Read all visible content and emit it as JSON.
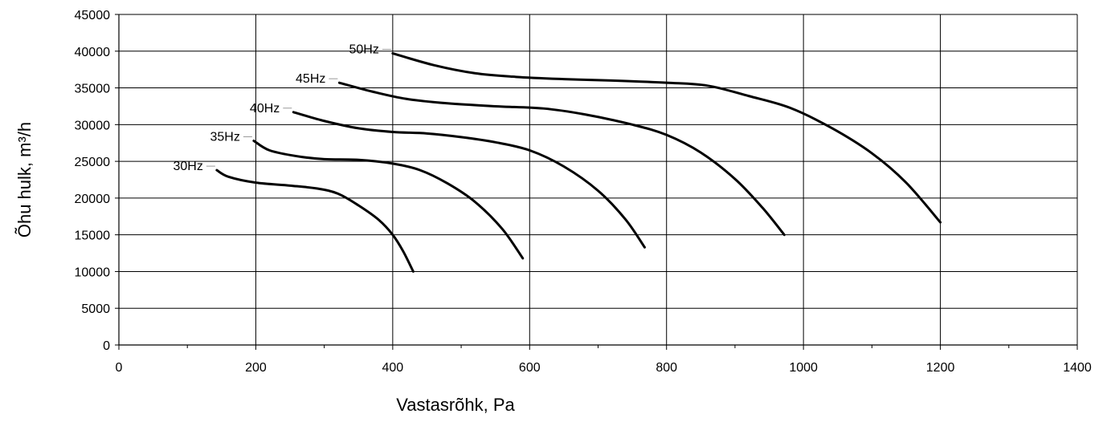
{
  "chart_data": {
    "type": "line",
    "title": "",
    "xlabel": "Vastasrõhk, Pa",
    "ylabel": "Õhu hulk, m³/h",
    "xlim": [
      0,
      1400
    ],
    "ylim": [
      0,
      45000
    ],
    "x_ticks": [
      "0",
      "200",
      "400",
      "600",
      "800",
      "1000",
      "1200",
      "1400"
    ],
    "y_ticks": [
      "0",
      "5000",
      "10000",
      "15000",
      "20000",
      "25000",
      "30000",
      "35000",
      "40000",
      "45000"
    ],
    "grid": "major-both",
    "legend": "inline-labels",
    "line_color": "#000000",
    "series": [
      {
        "name": "30Hz",
        "points": [
          [
            143,
            23800
          ],
          [
            160,
            22900
          ],
          [
            200,
            22100
          ],
          [
            250,
            21700
          ],
          [
            290,
            21300
          ],
          [
            320,
            20600
          ],
          [
            350,
            19000
          ],
          [
            380,
            17000
          ],
          [
            400,
            15000
          ],
          [
            415,
            12800
          ],
          [
            430,
            10000
          ]
        ]
      },
      {
        "name": "35Hz",
        "points": [
          [
            197,
            27800
          ],
          [
            220,
            26500
          ],
          [
            260,
            25700
          ],
          [
            300,
            25300
          ],
          [
            350,
            25200
          ],
          [
            400,
            24700
          ],
          [
            440,
            23800
          ],
          [
            480,
            22000
          ],
          [
            520,
            19500
          ],
          [
            560,
            15800
          ],
          [
            590,
            11800
          ]
        ]
      },
      {
        "name": "40Hz",
        "points": [
          [
            255,
            31700
          ],
          [
            300,
            30500
          ],
          [
            350,
            29500
          ],
          [
            400,
            29000
          ],
          [
            450,
            28800
          ],
          [
            500,
            28300
          ],
          [
            550,
            27600
          ],
          [
            600,
            26500
          ],
          [
            650,
            24300
          ],
          [
            700,
            21000
          ],
          [
            740,
            17100
          ],
          [
            768,
            13300
          ]
        ]
      },
      {
        "name": "45Hz",
        "points": [
          [
            322,
            35700
          ],
          [
            370,
            34500
          ],
          [
            420,
            33500
          ],
          [
            480,
            32900
          ],
          [
            550,
            32500
          ],
          [
            620,
            32200
          ],
          [
            680,
            31400
          ],
          [
            750,
            30000
          ],
          [
            800,
            28600
          ],
          [
            850,
            26200
          ],
          [
            900,
            22600
          ],
          [
            940,
            18700
          ],
          [
            972,
            15000
          ]
        ]
      },
      {
        "name": "50Hz",
        "points": [
          [
            400,
            39700
          ],
          [
            460,
            38100
          ],
          [
            520,
            37000
          ],
          [
            580,
            36500
          ],
          [
            650,
            36200
          ],
          [
            720,
            36000
          ],
          [
            800,
            35700
          ],
          [
            860,
            35300
          ],
          [
            920,
            33900
          ],
          [
            980,
            32300
          ],
          [
            1040,
            29600
          ],
          [
            1100,
            26100
          ],
          [
            1150,
            22100
          ],
          [
            1200,
            16700
          ]
        ]
      }
    ]
  }
}
